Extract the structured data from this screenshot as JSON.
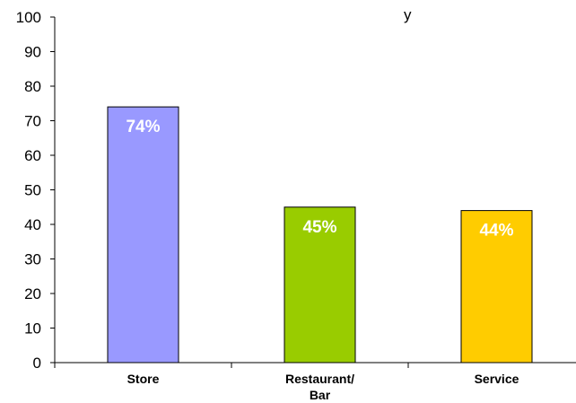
{
  "chart_data": {
    "type": "bar",
    "title": "y",
    "categories": [
      [
        "Store"
      ],
      [
        "Restaurant/",
        "Bar"
      ],
      [
        "Service"
      ]
    ],
    "values": [
      74,
      45,
      44
    ],
    "data_labels": [
      "74%",
      "45%",
      "44%"
    ],
    "bar_colors": [
      "#9999ff",
      "#99cc00",
      "#ffcc00"
    ],
    "ylim": [
      0,
      100
    ],
    "yticks": [
      "0",
      "10",
      "20",
      "30",
      "40",
      "50",
      "60",
      "70",
      "80",
      "90",
      "100"
    ],
    "grid": false,
    "legend": "none"
  }
}
